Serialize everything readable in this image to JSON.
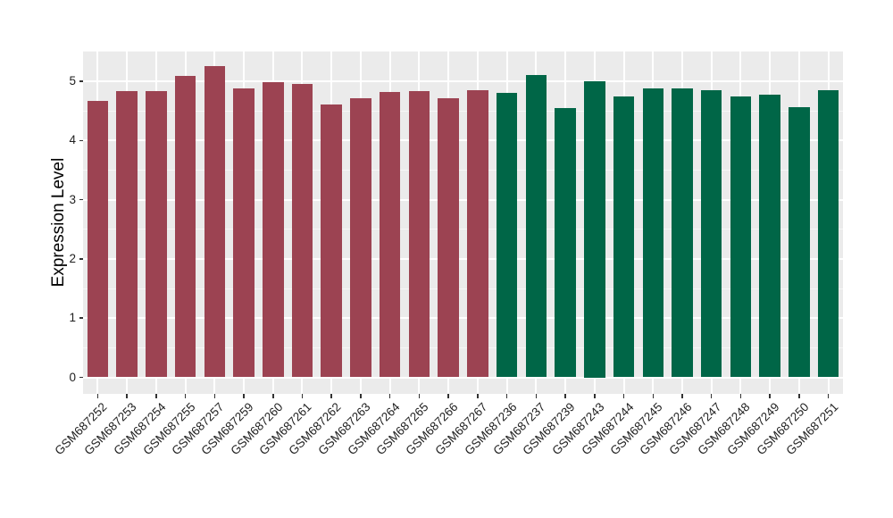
{
  "chart_data": {
    "type": "bar",
    "title": "",
    "xlabel": "",
    "ylabel": "Expression Level",
    "ylim": [
      0,
      5.5
    ],
    "yticks": [
      0,
      1,
      2,
      3,
      4,
      5
    ],
    "yminor": [
      0.5,
      1.5,
      2.5,
      3.5,
      4.5,
      5.5
    ],
    "grid": "on",
    "legend": "none",
    "categories": [
      "GSM687252",
      "GSM687253",
      "GSM687254",
      "GSM687255",
      "GSM687257",
      "GSM687259",
      "GSM687260",
      "GSM687261",
      "GSM687262",
      "GSM687263",
      "GSM687264",
      "GSM687265",
      "GSM687266",
      "GSM687267",
      "GSM687236",
      "GSM687237",
      "GSM687239",
      "GSM687243",
      "GSM687244",
      "GSM687245",
      "GSM687246",
      "GSM687247",
      "GSM687248",
      "GSM687249",
      "GSM687250",
      "GSM687251"
    ],
    "values": [
      4.67,
      4.83,
      4.83,
      5.09,
      5.26,
      4.88,
      4.99,
      4.96,
      4.61,
      4.72,
      4.82,
      4.83,
      4.72,
      4.85,
      4.81,
      5.1,
      4.55,
      5.0,
      4.74,
      4.88,
      4.88,
      4.85,
      4.75,
      4.78,
      4.57,
      4.85
    ],
    "groups": [
      "A",
      "A",
      "A",
      "A",
      "A",
      "A",
      "A",
      "A",
      "A",
      "A",
      "A",
      "A",
      "A",
      "A",
      "B",
      "B",
      "B",
      "B",
      "B",
      "B",
      "B",
      "B",
      "B",
      "B",
      "B",
      "B"
    ],
    "group_colors": {
      "A": "#9C4352",
      "B": "#006647"
    }
  },
  "style": {
    "panel_bg": "#EBEBEB",
    "grid_major": "#FFFFFF",
    "grid_minor": "#F7F7F7",
    "tick_color": "#333333",
    "label_color": "#1F1F1F",
    "outer_bg": "#FFFFFF"
  }
}
